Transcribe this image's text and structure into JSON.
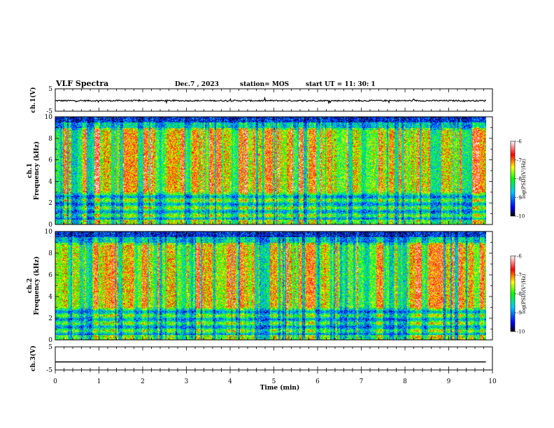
{
  "header": {
    "title": "VLF Spectra",
    "date": "Dec.7 , 2023",
    "station": "station= MOS",
    "start": "start UT =  11: 30: 1"
  },
  "chart_data": [
    {
      "type": "line",
      "name": "ch1-voltage",
      "ylabel": "ch.1(V)",
      "ylim": [
        -5,
        5
      ],
      "yticks": [
        "5",
        "-5"
      ],
      "xlim": [
        0,
        10
      ],
      "level": -0.3,
      "noise": 0.3
    },
    {
      "type": "heatmap",
      "name": "ch1-spectrogram",
      "ylabel": "ch.1\nFrequency (kHz)",
      "ylim": [
        0,
        10
      ],
      "yticks": [
        "0",
        "2",
        "4",
        "6",
        "8",
        "10"
      ],
      "xlim": [
        0,
        9.85
      ],
      "colorbar": {
        "label": "log(PSD)(V²/Hz)",
        "range": [
          -10,
          -6
        ],
        "ticks": [
          "-6",
          "-7",
          "-8",
          "-9",
          "-10"
        ]
      },
      "intensity": 0.62
    },
    {
      "type": "heatmap",
      "name": "ch2-spectrogram",
      "ylabel": "ch.2\nFrequency (kHz)",
      "ylim": [
        0,
        10
      ],
      "yticks": [
        "0",
        "2",
        "4",
        "6",
        "8",
        "10"
      ],
      "xlim": [
        0,
        9.85
      ],
      "colorbar": {
        "label": "log(PSD)(V²/Hz)",
        "range": [
          -10,
          -6
        ],
        "ticks": [
          "-6",
          "-7",
          "-8",
          "-9",
          "-10"
        ]
      },
      "intensity": 0.55
    },
    {
      "type": "line",
      "name": "ch3-voltage",
      "ylabel": "ch.3(V)",
      "ylim": [
        -5,
        5
      ],
      "yticks": [
        "5",
        "-5"
      ],
      "xlim": [
        0,
        10
      ],
      "level": -1.5,
      "noise": 0.0
    }
  ],
  "xaxis": {
    "label": "Time (min)",
    "ticks": [
      "0",
      "1",
      "2",
      "3",
      "4",
      "5",
      "6",
      "7",
      "8",
      "9",
      "10"
    ],
    "range": [
      0,
      10
    ]
  },
  "colors": {
    "axis": "#000000",
    "colormap": [
      "#000000",
      "#0000ff",
      "#00c8ff",
      "#00ff00",
      "#ffff00",
      "#ff0000",
      "#ffffff"
    ]
  }
}
